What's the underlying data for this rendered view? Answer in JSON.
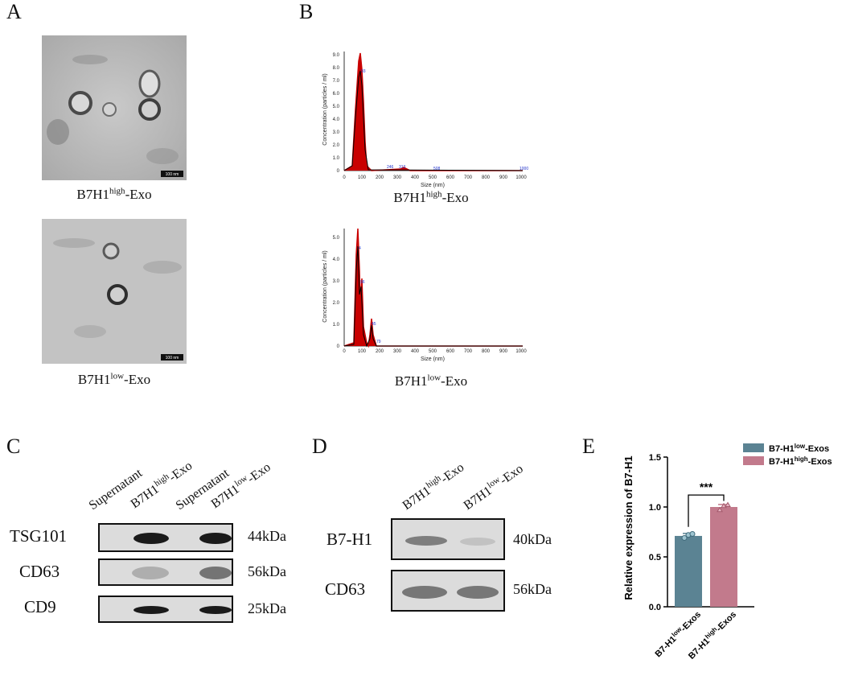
{
  "panels": {
    "A": "A",
    "B": "B",
    "C": "C",
    "D": "D",
    "E": "E"
  },
  "panelA": {
    "top": {
      "main": "B7H1",
      "sup": "high",
      "suffix": "-Exo",
      "scale_bar": "100 nm"
    },
    "bottom": {
      "main": "B7H1",
      "sup": "low",
      "suffix": "-Exo",
      "scale_bar": "100 nm"
    }
  },
  "panelB": {
    "top": {
      "main": "B7H1",
      "sup": "high",
      "suffix": "-Exo",
      "ylabel": "Concentration (particles / ml)",
      "xlabel": "Size (nm)",
      "yticks": [
        "0",
        "1.0",
        "2.0",
        "3.0",
        "4.0",
        "5.0",
        "6.0",
        "7.0",
        "8.0",
        "9.0"
      ],
      "xticks": [
        "0",
        "100",
        "200",
        "300",
        "400",
        "500",
        "600",
        "700",
        "800",
        "900",
        "1000"
      ],
      "peak_labels": [
        "93",
        "246",
        "313",
        "508",
        "1000"
      ]
    },
    "bottom": {
      "main": "B7H1",
      "sup": "low",
      "suffix": "-Exo",
      "ylabel": "Concentration (particles / ml)",
      "xlabel": "Size (nm)",
      "yticks": [
        "0",
        "1.0",
        "2.0",
        "3.0",
        "4.0",
        "5.0"
      ],
      "xticks": [
        "0",
        "100",
        "200",
        "300",
        "400",
        "500",
        "600",
        "700",
        "800",
        "900",
        "1000"
      ],
      "peak_labels": [
        "4",
        "96",
        "45",
        "79"
      ]
    }
  },
  "panelC": {
    "lanes": [
      {
        "main": "Supernatant",
        "sup": ""
      },
      {
        "main": "B7H1",
        "sup": "high",
        "suffix": "-Exo"
      },
      {
        "main": "Supernatant",
        "sup": ""
      },
      {
        "main": "B7H1",
        "sup": "low",
        "suffix": "-Exo"
      }
    ],
    "rows": [
      {
        "label": "TSG101",
        "kda": "44kDa"
      },
      {
        "label": "CD63",
        "kda": "56kDa"
      },
      {
        "label": "CD9",
        "kda": "25kDa"
      }
    ]
  },
  "panelD": {
    "lanes": [
      {
        "main": "B7H1",
        "sup": "high",
        "suffix": "-Exo"
      },
      {
        "main": "B7H1",
        "sup": "low",
        "suffix": "-Exo"
      }
    ],
    "rows": [
      {
        "label": "B7-H1",
        "kda": "40kDa"
      },
      {
        "label": "CD63",
        "kda": "56kDa"
      }
    ]
  },
  "chart_data": {
    "type": "bar",
    "ylabel": "Relative expression of B7-H1",
    "ylim": [
      0,
      1.5
    ],
    "yticks": [
      "0.0",
      "0.5",
      "1.0",
      "1.5"
    ],
    "categories": [
      "B7-H1low-Exos",
      "B7-H1high-Exos"
    ],
    "series": [
      {
        "name": "B7-H1low-Exos",
        "value": 0.71,
        "points": [
          0.69,
          0.72,
          0.73
        ],
        "color": "#5b8393"
      },
      {
        "name": "B7-H1high-Exos",
        "value": 1.0,
        "points": [
          0.97,
          1.01,
          1.02
        ],
        "color": "#c27a8c"
      }
    ],
    "significance": "***",
    "legend_position": "top-right"
  }
}
